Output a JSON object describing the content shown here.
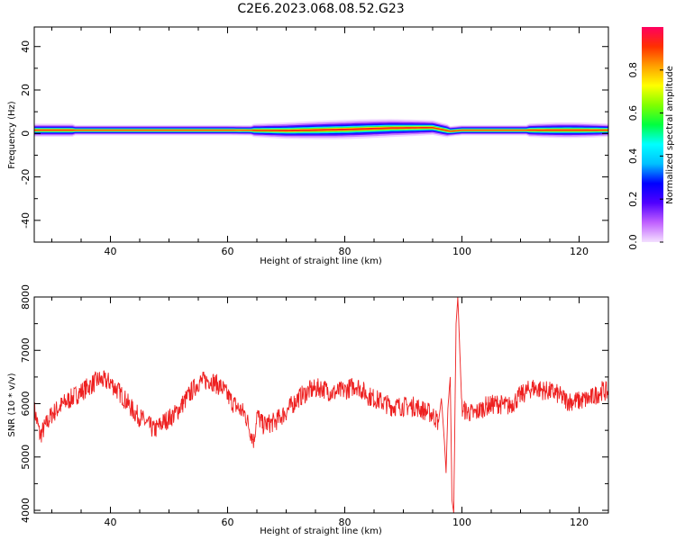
{
  "title": "C2E6.2023.068.08.52.G23",
  "chart_data": [
    {
      "type": "heatmap",
      "xlabel": "Height of straight line (km)",
      "ylabel": "Frequency (Hz)",
      "xlim": [
        27,
        125
      ],
      "ylim": [
        -50,
        49
      ],
      "xticks": [
        40,
        60,
        80,
        100,
        120
      ],
      "yticks": [
        40,
        20,
        0,
        -20,
        -40
      ],
      "ridge_frequency_hz": [
        {
          "x": 28,
          "y": 1.5
        },
        {
          "x": 40,
          "y": 1.5
        },
        {
          "x": 60,
          "y": 1.5
        },
        {
          "x": 70,
          "y": 1.3
        },
        {
          "x": 80,
          "y": 1.8
        },
        {
          "x": 88,
          "y": 2.5
        },
        {
          "x": 95,
          "y": 2.7
        },
        {
          "x": 98,
          "y": 1.0
        },
        {
          "x": 100,
          "y": 1.5
        },
        {
          "x": 115,
          "y": 1.5
        },
        {
          "x": 125,
          "y": 1.5
        }
      ],
      "colorbar": {
        "label": "Normalized spectral amplitude",
        "ticks": [
          "0.0",
          "0.2",
          "0.4",
          "0.6",
          "0.8"
        ],
        "range": [
          0,
          1
        ],
        "colors": [
          "#f4e0ff",
          "#c060ff",
          "#5000ff",
          "#0000ff",
          "#00c0ff",
          "#00ffff",
          "#00ff40",
          "#80ff00",
          "#ffff00",
          "#ffa000",
          "#ff3000",
          "#ff0060"
        ]
      }
    },
    {
      "type": "line",
      "xlabel": "Height of straight line (km)",
      "ylabel": "SNR (10 * v/v)",
      "xlim": [
        27,
        125
      ],
      "ylim": [
        3950,
        8000
      ],
      "xticks": [
        40,
        60,
        80,
        100,
        120
      ],
      "yticks": [
        8000,
        7000,
        6000,
        5000,
        4000
      ],
      "color": "#ee2020",
      "series": [
        {
          "x": [
            27,
            28,
            30,
            32,
            34,
            36,
            38,
            40,
            42,
            44,
            46,
            47.5,
            49,
            51,
            53,
            55,
            57,
            59,
            61,
            63,
            64,
            64.5,
            65,
            66,
            68,
            70,
            72,
            74,
            76,
            78,
            80,
            82,
            84,
            86,
            88,
            90,
            92,
            94,
            95,
            96,
            96.5,
            97,
            97.3,
            97.6,
            98,
            98.3,
            98.6,
            99,
            99.3,
            100,
            102,
            104,
            106,
            108,
            110,
            112,
            114,
            116,
            118,
            120,
            122,
            124,
            125
          ],
          "y": [
            5900,
            5400,
            5800,
            6000,
            6150,
            6300,
            6450,
            6400,
            6150,
            5850,
            5650,
            5500,
            5650,
            5800,
            6100,
            6400,
            6450,
            6300,
            6000,
            5800,
            5450,
            5300,
            5800,
            5600,
            5650,
            5850,
            6100,
            6250,
            6300,
            6200,
            6250,
            6350,
            6150,
            6050,
            5950,
            5950,
            5950,
            5850,
            5800,
            5650,
            6100,
            5300,
            4700,
            5900,
            6500,
            4200,
            3950,
            7500,
            8000,
            5900,
            5800,
            5950,
            6000,
            5950,
            6150,
            6300,
            6250,
            6200,
            6050,
            6050,
            6100,
            6250,
            6200
          ]
        }
      ]
    }
  ]
}
